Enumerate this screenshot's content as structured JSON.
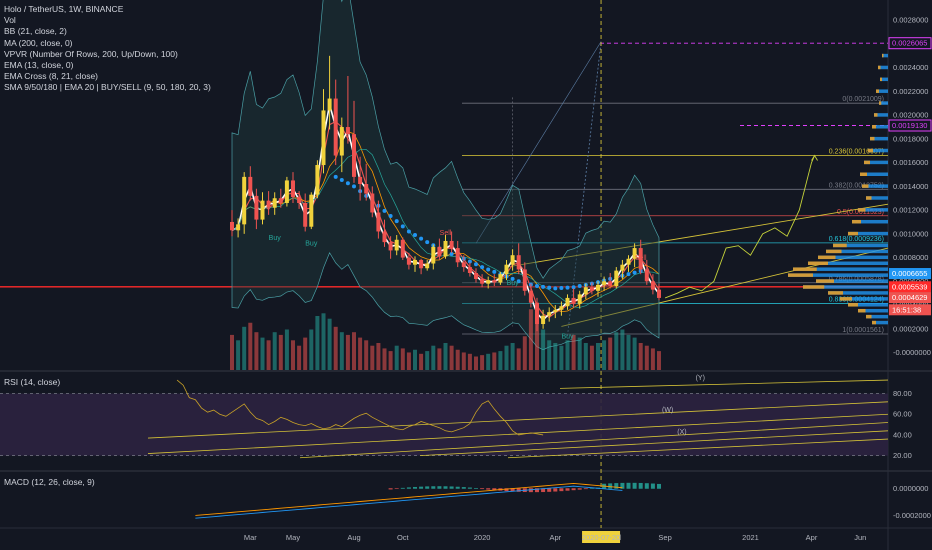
{
  "header": {
    "title": "Holo / TetherUS, 1W, BINANCE",
    "indicators": [
      "Vol",
      "BB (21, close, 2)",
      "MA (200, close, 0)",
      "VPVR (Number Of Rows, 200, Up/Down, 100)",
      "EMA (13, close, 0)",
      "EMA Cross (8, 21, close)",
      "SMA 9/50/180 | EMA 20 | BUY/SELL (9, 50, 180, 20, 3)"
    ]
  },
  "panes": {
    "rsi_label": "RSI (14, close)",
    "macd_label": "MACD (12, 26, close, 9)"
  },
  "colors": {
    "background": "#131722",
    "up": "#26a69a",
    "down": "#ef5350",
    "candle_up": "#f0d23c",
    "candle_down": "#ef5350",
    "bb": "#4a9fa5",
    "ema13": "#ffffff",
    "dots": "#2196f3",
    "fib_yellow": "#d4c238",
    "resistance": "#ff2a2a",
    "magenta": "#e040fb",
    "rsi_bg": "#2c2240",
    "vpvr": "#2196f3",
    "vpvr_down": "#f0a020"
  },
  "chart_data": {
    "type": "candlestick",
    "symbol": "HOTUSDT",
    "timeframe": "1W",
    "y_axis": {
      "scale": "linear",
      "ylim": [
        -8e-05,
        0.00292
      ],
      "ticks": [
        "0.0028000",
        "0.0026000",
        "0.0024000",
        "0.0022000",
        "0.0020000",
        "0.0018000",
        "0.0016000",
        "0.0014000",
        "0.0012000",
        "0.0010000",
        "0.0008000",
        "0.0006000",
        "0.0004000",
        "0.0002000",
        "-0.0000000"
      ],
      "tick_values": [
        0.0028,
        0.0026,
        0.0024,
        0.0022,
        0.002,
        0.0018,
        0.0016,
        0.0014,
        0.0012,
        0.001,
        0.0008,
        0.0006,
        0.0004,
        0.0002,
        0.0
      ]
    },
    "x_axis": {
      "ticks": [
        "Mar",
        "May",
        "Aug",
        "Oct",
        "2020",
        "Apr",
        "Jul",
        "Sep",
        "2021",
        "Apr",
        "Jun"
      ],
      "highlight": "2020-07-20",
      "index_range": [
        0,
        100
      ],
      "tick_index": [
        3,
        10,
        20,
        28,
        41,
        53,
        63,
        71,
        85,
        95,
        103
      ]
    },
    "price_tags": [
      {
        "label": "0.0026065",
        "value": 0.0026065,
        "color": "#e040fb",
        "style": "outline"
      },
      {
        "label": "0.0019130",
        "value": 0.001913,
        "color": "#e040fb",
        "style": "outline"
      },
      {
        "label": "0.0006655",
        "value": 0.0006655,
        "color": "#2196f3",
        "style": "fill"
      },
      {
        "label": "0.0005539",
        "value": 0.0005539,
        "color": "#ff2a2a",
        "style": "fill"
      },
      {
        "label": "0.0004629",
        "value": 0.0004629,
        "color": "#ef5350",
        "style": "fill"
      },
      {
        "label": "16:51:38",
        "value": 0.00036,
        "color": "#ef5350",
        "style": "fill"
      }
    ],
    "fib_levels": [
      {
        "label": "0(0.0021009)",
        "value": 0.0021009,
        "color": "#787b86"
      },
      {
        "label": "0.236(0.0016607)",
        "value": 0.0016607,
        "color": "#d4c238"
      },
      {
        "label": "0.382(0.0013752)",
        "value": 0.0013752,
        "color": "#787b86"
      },
      {
        "label": "0.5(0.0011523)",
        "value": 0.0011523,
        "color": "#ef5350"
      },
      {
        "label": "0.618(0.0009236)",
        "value": 0.0009236,
        "color": "#26c6da"
      },
      {
        "label": "0.786(0.0005878)",
        "value": 0.0005878,
        "color": "#787b86"
      },
      {
        "label": "0.886(0.0004124)",
        "value": 0.0004124,
        "color": "#26c6da"
      },
      {
        "label": "1(0.0001561)",
        "value": 0.0001561,
        "color": "#787b86"
      }
    ],
    "signals": [
      {
        "label": "Buy",
        "index": 7,
        "value": 0.00095
      },
      {
        "label": "Buy",
        "index": 13,
        "value": 0.0009
      },
      {
        "label": "Sell",
        "index": 35,
        "value": 0.00099
      },
      {
        "label": "Buy",
        "index": 46,
        "value": 0.00057
      },
      {
        "label": "Buy",
        "index": 55,
        "value": 0.00012
      },
      {
        "label": "Sell",
        "index": 67,
        "value": 0.00078
      }
    ],
    "candles": [
      [
        0.0011,
        0.0012,
        0.00098,
        0.00103
      ],
      [
        0.00103,
        0.00113,
        0.00097,
        0.00108
      ],
      [
        0.00108,
        0.00152,
        0.001,
        0.00148
      ],
      [
        0.00148,
        0.00157,
        0.00128,
        0.00132
      ],
      [
        0.00132,
        0.00138,
        0.00104,
        0.00112
      ],
      [
        0.00112,
        0.00135,
        0.00108,
        0.00128
      ],
      [
        0.00128,
        0.00136,
        0.00116,
        0.00122
      ],
      [
        0.00122,
        0.00135,
        0.00116,
        0.0013
      ],
      [
        0.0013,
        0.00138,
        0.00122,
        0.00126
      ],
      [
        0.00126,
        0.00148,
        0.00123,
        0.00145
      ],
      [
        0.00145,
        0.00152,
        0.00126,
        0.00131
      ],
      [
        0.00131,
        0.00136,
        0.00121,
        0.00126
      ],
      [
        0.00126,
        0.00134,
        0.00102,
        0.00106
      ],
      [
        0.00106,
        0.00135,
        0.00104,
        0.00133
      ],
      [
        0.00133,
        0.00162,
        0.0013,
        0.00158
      ],
      [
        0.00158,
        0.00222,
        0.00151,
        0.00204
      ],
      [
        0.00204,
        0.0025,
        0.00188,
        0.00214
      ],
      [
        0.00214,
        0.0023,
        0.00158,
        0.00166
      ],
      [
        0.00166,
        0.00198,
        0.00152,
        0.0019
      ],
      [
        0.0019,
        0.00233,
        0.00176,
        0.00184
      ],
      [
        0.00184,
        0.00212,
        0.00143,
        0.00148
      ],
      [
        0.00148,
        0.00165,
        0.00128,
        0.00142
      ],
      [
        0.00142,
        0.00159,
        0.00128,
        0.00134
      ],
      [
        0.00134,
        0.0014,
        0.00114,
        0.00118
      ],
      [
        0.00118,
        0.00128,
        0.00096,
        0.00102
      ],
      [
        0.00102,
        0.00112,
        0.00089,
        0.00093
      ],
      [
        0.00093,
        0.00098,
        0.00079,
        0.00086
      ],
      [
        0.00086,
        0.00099,
        0.00082,
        0.00095
      ],
      [
        0.00095,
        0.00097,
        0.00078,
        0.0008
      ],
      [
        0.0008,
        0.00084,
        0.0007,
        0.00074
      ],
      [
        0.00074,
        0.00081,
        0.00068,
        0.00078
      ],
      [
        0.00078,
        0.00079,
        0.00066,
        0.00071
      ],
      [
        0.00071,
        0.00078,
        0.00069,
        0.00075
      ],
      [
        0.00075,
        0.00091,
        0.0007,
        0.00089
      ],
      [
        0.00089,
        0.00096,
        0.00078,
        0.00081
      ],
      [
        0.00081,
        0.00099,
        0.00079,
        0.00094
      ],
      [
        0.00094,
        0.00102,
        0.00084,
        0.00088
      ],
      [
        0.00088,
        0.00094,
        0.00072,
        0.00076
      ],
      [
        0.00076,
        0.00082,
        0.00068,
        0.00072
      ],
      [
        0.00072,
        0.00076,
        0.00064,
        0.00067
      ],
      [
        0.00067,
        0.00071,
        0.00059,
        0.00062
      ],
      [
        0.00062,
        0.00066,
        0.00055,
        0.00058
      ],
      [
        0.00058,
        0.00064,
        0.00054,
        0.00061
      ],
      [
        0.00061,
        0.00066,
        0.00056,
        0.00059
      ],
      [
        0.00059,
        0.00068,
        0.00057,
        0.00066
      ],
      [
        0.00066,
        0.00078,
        0.00061,
        0.00074
      ],
      [
        0.00074,
        0.00087,
        0.00069,
        0.00082
      ],
      [
        0.00082,
        0.00092,
        0.00066,
        0.0007
      ],
      [
        0.0007,
        0.00076,
        0.00048,
        0.00052
      ],
      [
        0.00052,
        0.00058,
        0.00038,
        0.00042
      ],
      [
        0.00042,
        0.00046,
        0.00018,
        0.00024
      ],
      [
        0.00024,
        0.00036,
        0.0002,
        0.00031
      ],
      [
        0.00031,
        0.00038,
        0.00026,
        0.00034
      ],
      [
        0.00034,
        0.0004,
        0.00029,
        0.00036
      ],
      [
        0.00036,
        0.00043,
        0.00031,
        0.00039
      ],
      [
        0.00039,
        0.00049,
        0.00036,
        0.00046
      ],
      [
        0.00046,
        0.00054,
        0.00038,
        0.00041
      ],
      [
        0.00041,
        0.00052,
        0.00037,
        0.00049
      ],
      [
        0.00049,
        0.00058,
        0.00045,
        0.00055
      ],
      [
        0.00055,
        0.00059,
        0.00049,
        0.00052
      ],
      [
        0.00052,
        0.0006,
        0.00047,
        0.00057
      ],
      [
        0.00057,
        0.00064,
        0.00052,
        0.0006
      ],
      [
        0.0006,
        0.00067,
        0.00054,
        0.00056
      ],
      [
        0.00056,
        0.00072,
        0.00054,
        0.00069
      ],
      [
        0.00069,
        0.00078,
        0.00062,
        0.00074
      ],
      [
        0.00074,
        0.00082,
        0.00068,
        0.00079
      ],
      [
        0.00079,
        0.00092,
        0.00072,
        0.00088
      ],
      [
        0.00088,
        0.00095,
        0.00066,
        0.0007
      ],
      [
        0.0007,
        0.00078,
        0.00057,
        0.0006
      ],
      [
        0.0006,
        0.00066,
        0.00049,
        0.00053
      ],
      [
        0.00053,
        0.00058,
        0.00044,
        0.00046
      ]
    ],
    "volume": [
      26,
      22,
      32,
      35,
      28,
      24,
      22,
      28,
      26,
      30,
      22,
      18,
      24,
      30,
      40,
      42,
      38,
      32,
      28,
      26,
      28,
      24,
      22,
      18,
      20,
      16,
      14,
      18,
      16,
      13,
      15,
      12,
      14,
      18,
      16,
      20,
      18,
      15,
      13,
      12,
      10,
      11,
      12,
      13,
      14,
      18,
      20,
      16,
      25,
      45,
      38,
      30,
      22,
      20,
      18,
      22,
      26,
      24,
      20,
      18,
      20,
      22,
      24,
      28,
      30,
      26,
      24,
      20,
      18,
      16,
      14
    ],
    "projection": [
      [
        71,
        0.00046
      ],
      [
        73,
        0.0005
      ],
      [
        75,
        0.00055
      ],
      [
        77,
        0.00052
      ],
      [
        79,
        0.0006
      ],
      [
        81,
        0.00088
      ],
      [
        83,
        0.0009
      ],
      [
        85,
        0.00082
      ],
      [
        87,
        0.001
      ],
      [
        89,
        0.00105
      ],
      [
        91,
        0.00098
      ],
      [
        93,
        0.0012
      ],
      [
        95,
        0.0016
      ],
      [
        95.5,
        0.00166
      ]
    ],
    "rsi": {
      "ylim": [
        10,
        95
      ],
      "ticks": [
        "80.00",
        "60.00",
        "40.00",
        "20.00"
      ],
      "tick_values": [
        80,
        60,
        40,
        20
      ],
      "values": [
        93,
        88,
        76,
        74,
        66,
        62,
        64,
        60,
        58,
        62,
        66,
        70,
        62,
        56,
        54,
        50,
        53,
        57,
        55,
        52,
        50,
        49,
        51,
        48,
        46,
        47,
        50,
        48,
        52,
        56,
        59,
        61,
        57,
        54,
        51,
        48,
        46,
        45,
        48,
        50,
        53,
        51,
        49,
        47,
        44,
        43,
        45,
        47,
        51,
        62,
        70,
        73,
        65,
        58,
        52,
        44,
        40,
        41,
        42,
        41,
        40
      ],
      "start_index": 20,
      "annotations": [
        "(Y)",
        "(W)",
        "(X)"
      ]
    },
    "macd": {
      "ticks": [
        "0.0000000",
        "-0.0002000"
      ],
      "tick_values": [
        0.0,
        -0.0002
      ],
      "ylim": [
        -0.00027,
        9e-05
      ]
    }
  }
}
